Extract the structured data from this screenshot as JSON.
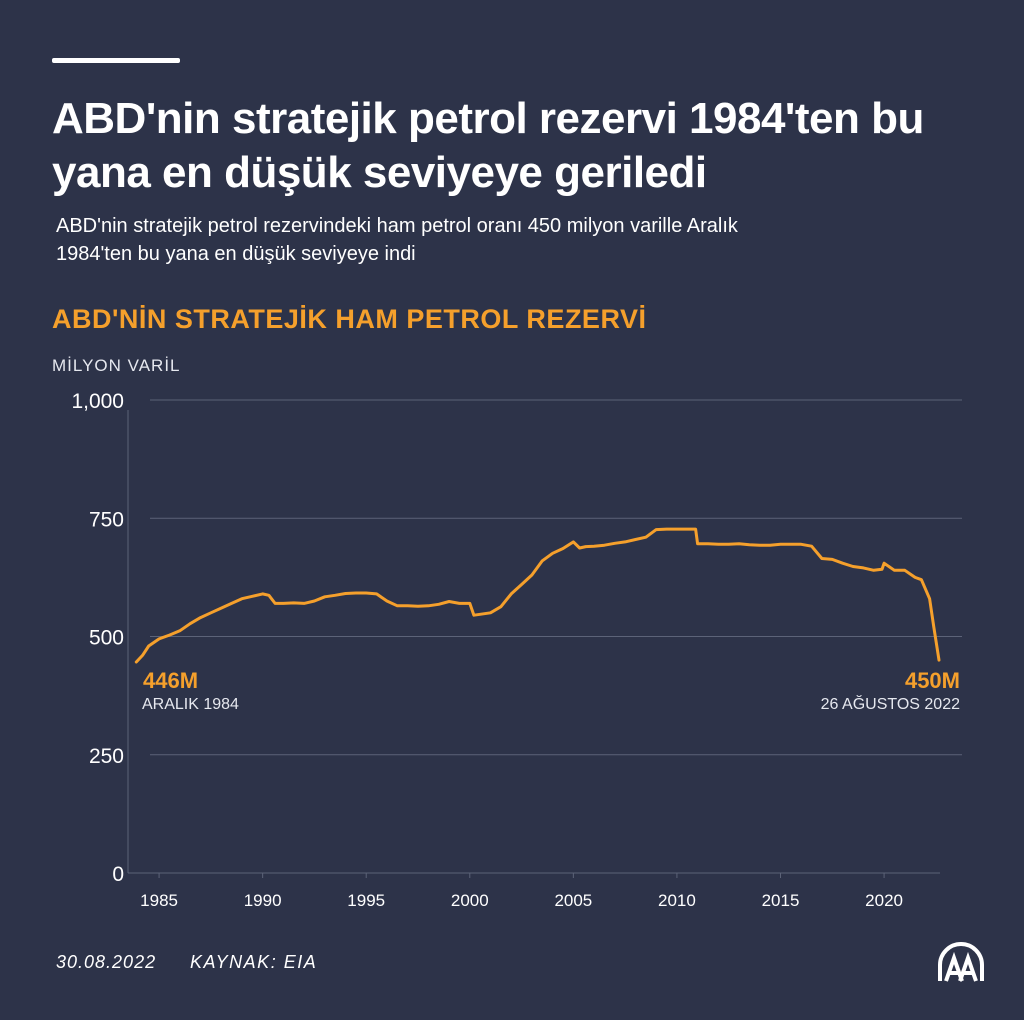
{
  "header": {
    "title": "ABD'nin stratejik petrol rezervi 1984'ten bu yana en düşük seviyeye geriledi",
    "subtitle": "ABD'nin stratejik petrol rezervindeki ham petrol oranı 450 milyon varille Aralık 1984'ten bu yana en düşük seviyeye indi"
  },
  "footer": {
    "date": "30.08.2022",
    "source": "KAYNAK: EIA"
  },
  "logo": {
    "icon": "aa-logo-icon",
    "letters": "AA"
  },
  "colors": {
    "background": "#2d3349",
    "accent": "#f5a02c",
    "grid": "#5c6378",
    "text": "#ffffff"
  },
  "chart_data": {
    "type": "line",
    "title": "ABD'NİN STRATEJİK HAM PETROL REZERVİ",
    "ylabel": "MİLYON VARİL",
    "xlabel": "",
    "xlim": [
      1983.5,
      2022.7
    ],
    "ylim": [
      0,
      1000
    ],
    "yticks": [
      0,
      250,
      500,
      750,
      1000
    ],
    "ytick_labels": [
      "0",
      "250",
      "500",
      "750",
      "1,000"
    ],
    "xticks": [
      1985,
      1990,
      1995,
      2000,
      2005,
      2010,
      2015,
      2020
    ],
    "xtick_labels": [
      "1985",
      "1990",
      "1995",
      "2000",
      "2005",
      "2010",
      "2015",
      "2020"
    ],
    "grid": true,
    "series": [
      {
        "color": "#f5a02c",
        "x": [
          1983.9,
          1984.2,
          1984.5,
          1985.0,
          1985.5,
          1986.0,
          1986.5,
          1987.0,
          1987.5,
          1988.0,
          1988.5,
          1989.0,
          1989.5,
          1990.0,
          1990.3,
          1990.6,
          1991.0,
          1991.5,
          1992.0,
          1992.5,
          1993.0,
          1993.5,
          1994.0,
          1994.5,
          1995.0,
          1995.5,
          1996.0,
          1996.5,
          1997.0,
          1997.5,
          1998.0,
          1998.5,
          1999.0,
          1999.5,
          2000.0,
          2000.2,
          2000.5,
          2001.0,
          2001.5,
          2002.0,
          2002.5,
          2003.0,
          2003.5,
          2004.0,
          2004.5,
          2005.0,
          2005.3,
          2005.6,
          2006.0,
          2006.5,
          2007.0,
          2007.5,
          2008.0,
          2008.5,
          2009.0,
          2009.5,
          2010.0,
          2010.5,
          2010.9,
          2011.0,
          2011.5,
          2012.0,
          2012.5,
          2013.0,
          2013.5,
          2014.0,
          2014.5,
          2015.0,
          2015.5,
          2016.0,
          2016.5,
          2017.0,
          2017.5,
          2018.0,
          2018.5,
          2019.0,
          2019.5,
          2019.9,
          2020.0,
          2020.5,
          2021.0,
          2021.5,
          2021.8,
          2022.0,
          2022.2,
          2022.4,
          2022.65
        ],
        "y": [
          446,
          460,
          480,
          495,
          503,
          512,
          527,
          540,
          550,
          560,
          570,
          580,
          585,
          590,
          587,
          570,
          570,
          571,
          570,
          575,
          584,
          587,
          591,
          592,
          592,
          590,
          575,
          565,
          565,
          564,
          565,
          568,
          574,
          570,
          570,
          545,
          547,
          550,
          563,
          590,
          610,
          630,
          660,
          676,
          686,
          700,
          687,
          690,
          691,
          693,
          697,
          700,
          705,
          710,
          726,
          727,
          727,
          727,
          727,
          696,
          696,
          695,
          695,
          696,
          694,
          693,
          693,
          695,
          695,
          695,
          691,
          665,
          663,
          655,
          648,
          645,
          640,
          642,
          655,
          640,
          640,
          625,
          620,
          600,
          580,
          520,
          450
        ]
      }
    ],
    "annotations": [
      {
        "value": "446M",
        "label": "ARALIK 1984"
      },
      {
        "value": "450M",
        "label": "26 AĞUSTOS 2022"
      }
    ]
  }
}
